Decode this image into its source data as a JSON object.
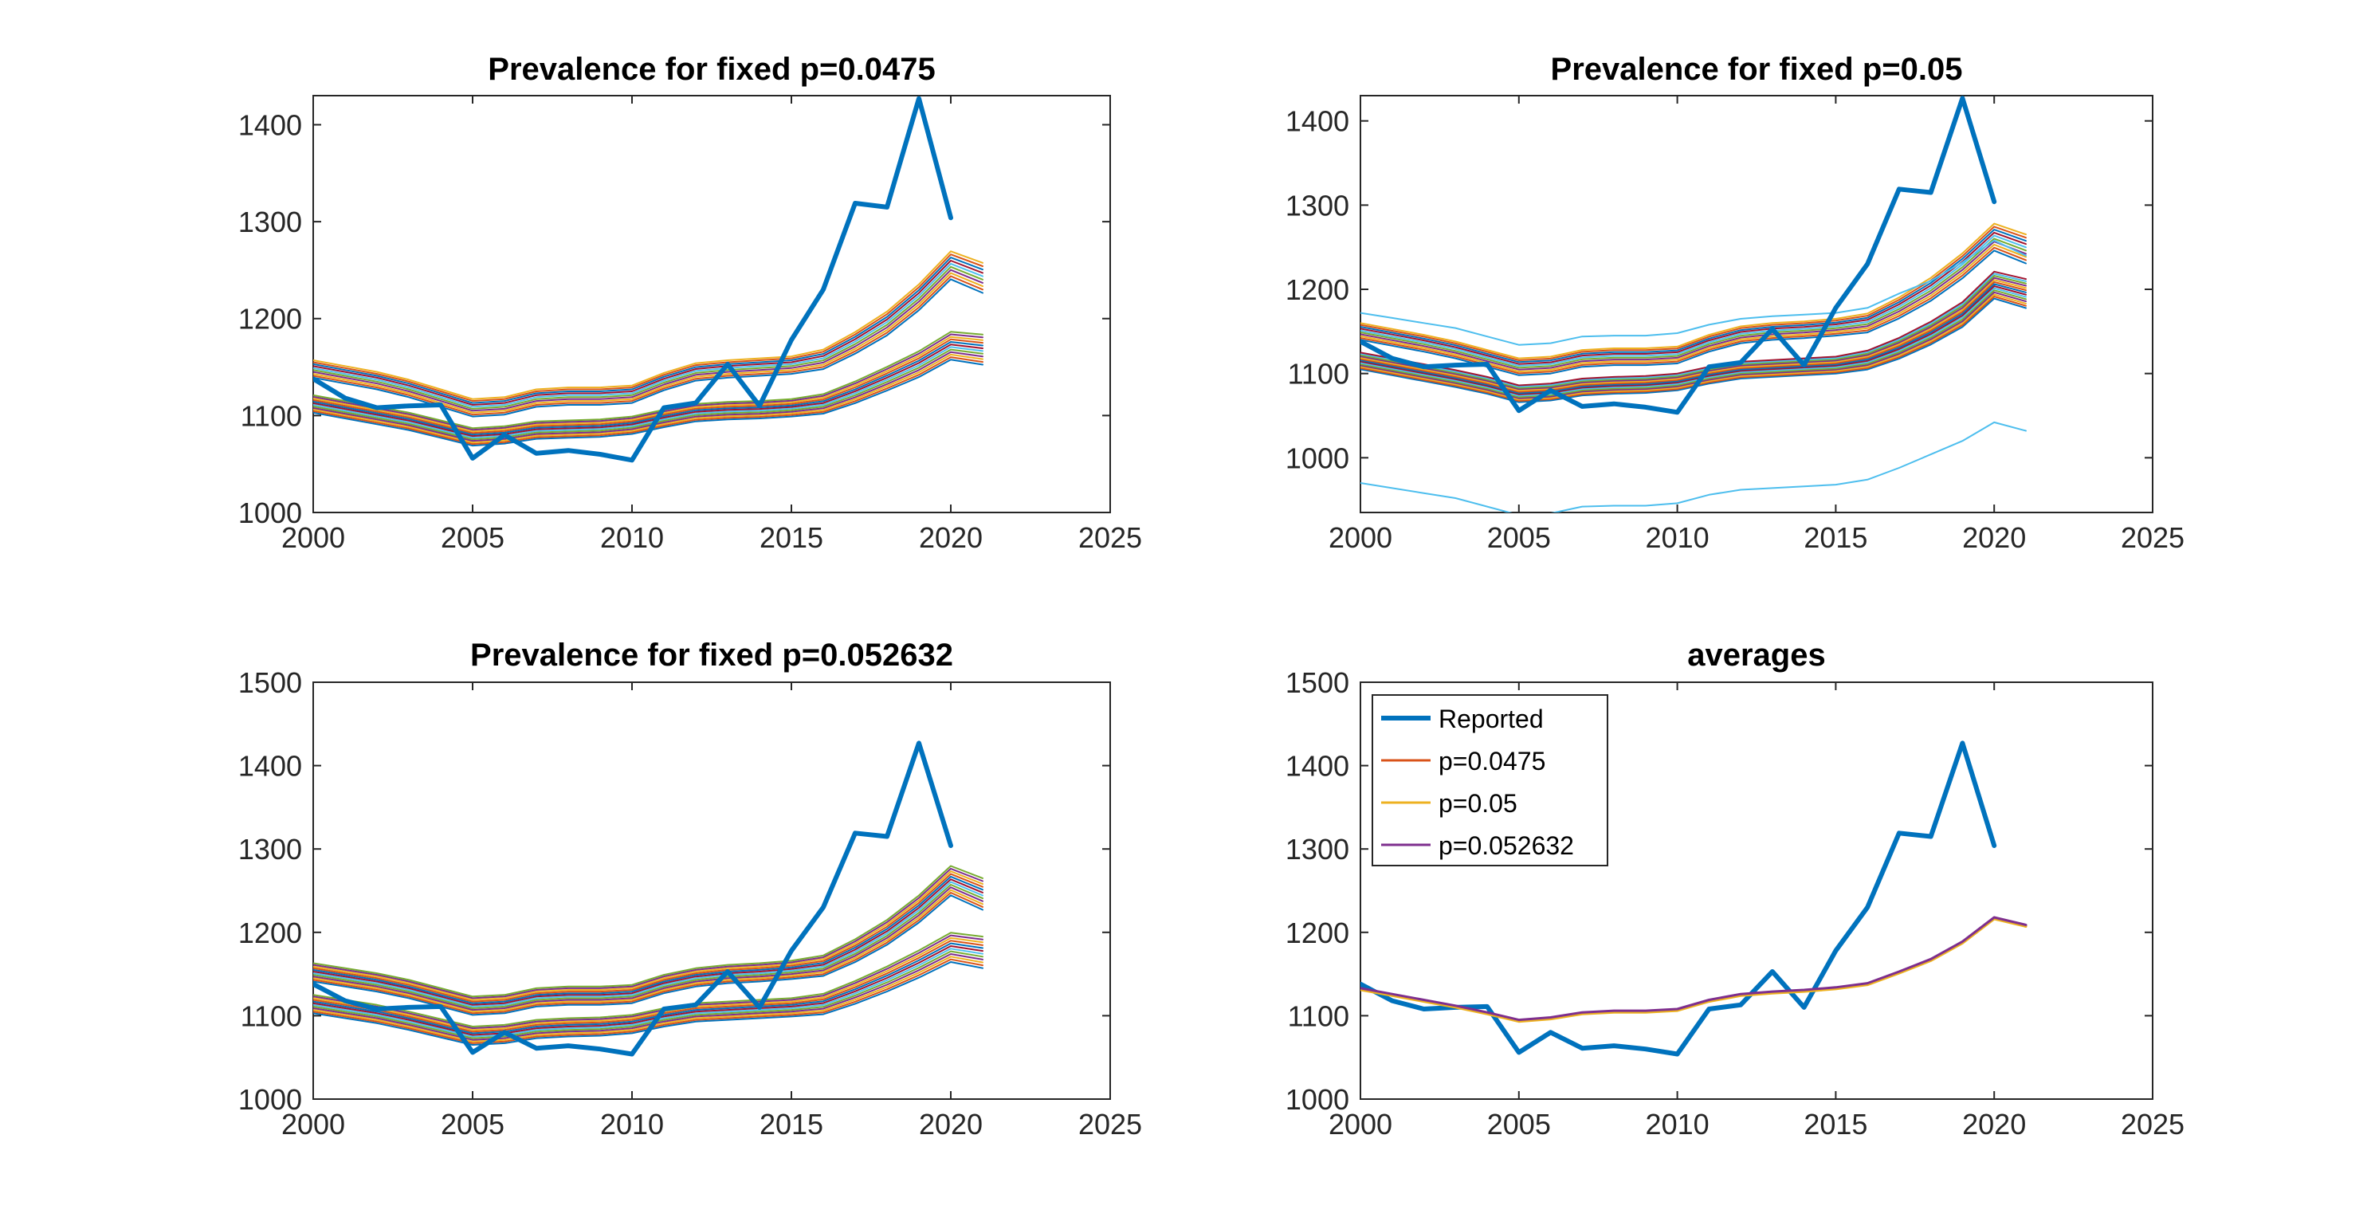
{
  "chart_data": [
    {
      "type": "line",
      "title": "Prevalence for fixed p=0.0475",
      "xlim": [
        2000,
        2025
      ],
      "ylim": [
        1000,
        1430
      ],
      "xticks": [
        2000,
        2005,
        2010,
        2015,
        2020,
        2025
      ],
      "yticks": [
        1000,
        1100,
        1200,
        1300,
        1400
      ],
      "grid": false,
      "reported": {
        "name": "Reported",
        "color": "#0072BD",
        "x": [
          2000,
          2001,
          2002,
          2003,
          2004,
          2005,
          2006,
          2007,
          2008,
          2009,
          2010,
          2011,
          2012,
          2013,
          2014,
          2015,
          2016,
          2017,
          2018,
          2019,
          2020
        ],
        "y": [
          1138,
          1118,
          1108,
          1110,
          1111,
          1056,
          1080,
          1061,
          1064,
          1060,
          1054,
          1108,
          1113,
          1153,
          1110,
          1178,
          1230,
          1319,
          1315,
          1427,
          1304
        ]
      },
      "simulation_x": [
        2000,
        2001,
        2002,
        2003,
        2004,
        2005,
        2006,
        2007,
        2008,
        2009,
        2010,
        2011,
        2012,
        2013,
        2014,
        2015,
        2016,
        2017,
        2018,
        2019,
        2020,
        2021
      ],
      "simulation_top_band": {
        "base": [
          1148,
          1142,
          1136,
          1128,
          1118,
          1108,
          1110,
          1118,
          1120,
          1120,
          1122,
          1135,
          1145,
          1148,
          1150,
          1152,
          1158,
          1175,
          1195,
          1222,
          1255,
          1242
        ],
        "count": 10,
        "spread": 18
      },
      "simulation_bottom_band": {
        "base": [
          1112,
          1106,
          1100,
          1094,
          1086,
          1078,
          1080,
          1085,
          1086,
          1087,
          1090,
          1097,
          1103,
          1105,
          1106,
          1108,
          1112,
          1124,
          1138,
          1153,
          1172,
          1168
        ],
        "count": 12,
        "spread": 18
      }
    },
    {
      "type": "line",
      "title": "Prevalence for fixed p=0.05",
      "xlim": [
        2000,
        2025
      ],
      "ylim": [
        935,
        1430
      ],
      "xticks": [
        2000,
        2005,
        2010,
        2015,
        2020,
        2025
      ],
      "yticks": [
        1000,
        1100,
        1200,
        1300,
        1400
      ],
      "grid": false,
      "reported": {
        "name": "Reported",
        "color": "#0072BD",
        "x": [
          2000,
          2001,
          2002,
          2003,
          2004,
          2005,
          2006,
          2007,
          2008,
          2009,
          2010,
          2011,
          2012,
          2013,
          2014,
          2015,
          2016,
          2017,
          2018,
          2019,
          2020
        ],
        "y": [
          1138,
          1118,
          1108,
          1110,
          1111,
          1056,
          1080,
          1061,
          1064,
          1060,
          1054,
          1108,
          1113,
          1153,
          1110,
          1178,
          1230,
          1319,
          1315,
          1427,
          1304
        ]
      },
      "simulation_x": [
        2000,
        2001,
        2002,
        2003,
        2004,
        2005,
        2006,
        2007,
        2008,
        2009,
        2010,
        2011,
        2012,
        2013,
        2014,
        2015,
        2016,
        2017,
        2018,
        2019,
        2020,
        2021
      ],
      "simulation_top_band": {
        "base": [
          1150,
          1143,
          1136,
          1128,
          1118,
          1108,
          1110,
          1118,
          1120,
          1120,
          1122,
          1136,
          1146,
          1150,
          1152,
          1155,
          1160,
          1178,
          1200,
          1228,
          1262,
          1248
        ],
        "count": 10,
        "spread": 20
      },
      "simulation_bottom_band": {
        "base": [
          1115,
          1108,
          1101,
          1094,
          1086,
          1076,
          1078,
          1084,
          1086,
          1087,
          1090,
          1098,
          1104,
          1106,
          1108,
          1110,
          1116,
          1130,
          1148,
          1170,
          1205,
          1195
        ],
        "count": 14,
        "spread": 20
      },
      "outliers": [
        {
          "color": "#4DBEEE",
          "y": [
            1172,
            1166,
            1160,
            1154,
            1144,
            1134,
            1136,
            1144,
            1145,
            1145,
            1148,
            1158,
            1165,
            1168,
            1170,
            1172,
            1178,
            1195,
            1210,
            1232,
            1258,
            1240
          ]
        },
        {
          "color": "#4DBEEE",
          "y": [
            970,
            964,
            958,
            952,
            942,
            932,
            934,
            942,
            943,
            943,
            946,
            956,
            962,
            964,
            966,
            968,
            974,
            988,
            1004,
            1020,
            1042,
            1032
          ]
        }
      ]
    },
    {
      "type": "line",
      "title": "Prevalence for fixed p=0.052632",
      "xlim": [
        2000,
        2025
      ],
      "ylim": [
        1000,
        1500
      ],
      "xticks": [
        2000,
        2005,
        2010,
        2015,
        2020,
        2025
      ],
      "yticks": [
        1000,
        1100,
        1200,
        1300,
        1400,
        1500
      ],
      "grid": false,
      "reported": {
        "name": "Reported",
        "color": "#0072BD",
        "x": [
          2000,
          2001,
          2002,
          2003,
          2004,
          2005,
          2006,
          2007,
          2008,
          2009,
          2010,
          2011,
          2012,
          2013,
          2014,
          2015,
          2016,
          2017,
          2018,
          2019,
          2020
        ],
        "y": [
          1138,
          1118,
          1108,
          1110,
          1111,
          1056,
          1080,
          1061,
          1064,
          1060,
          1054,
          1108,
          1113,
          1153,
          1110,
          1178,
          1230,
          1319,
          1315,
          1427,
          1304
        ]
      },
      "simulation_x": [
        2000,
        2001,
        2002,
        2003,
        2004,
        2005,
        2006,
        2007,
        2008,
        2009,
        2010,
        2011,
        2012,
        2013,
        2014,
        2015,
        2016,
        2017,
        2018,
        2019,
        2020,
        2021
      ],
      "simulation_top_band": {
        "base": [
          1152,
          1146,
          1140,
          1132,
          1122,
          1112,
          1114,
          1122,
          1124,
          1124,
          1126,
          1138,
          1146,
          1150,
          1152,
          1155,
          1160,
          1178,
          1200,
          1228,
          1262,
          1246
        ],
        "count": 12,
        "spread": 22
      },
      "simulation_bottom_band": {
        "base": [
          1114,
          1108,
          1102,
          1094,
          1085,
          1076,
          1078,
          1084,
          1086,
          1087,
          1090,
          1098,
          1104,
          1106,
          1108,
          1110,
          1114,
          1128,
          1144,
          1162,
          1182,
          1176
        ],
        "count": 12,
        "spread": 22
      }
    },
    {
      "type": "line",
      "title": "averages",
      "xlim": [
        2000,
        2025
      ],
      "ylim": [
        1000,
        1500
      ],
      "xticks": [
        2000,
        2005,
        2010,
        2015,
        2020,
        2025
      ],
      "yticks": [
        1000,
        1100,
        1200,
        1300,
        1400,
        1500
      ],
      "grid": false,
      "legend_position": "top-left",
      "series": [
        {
          "name": "Reported",
          "color": "#0072BD",
          "x": [
            2000,
            2001,
            2002,
            2003,
            2004,
            2005,
            2006,
            2007,
            2008,
            2009,
            2010,
            2011,
            2012,
            2013,
            2014,
            2015,
            2016,
            2017,
            2018,
            2019,
            2020
          ],
          "y": [
            1138,
            1118,
            1108,
            1110,
            1111,
            1056,
            1080,
            1061,
            1064,
            1060,
            1054,
            1108,
            1113,
            1153,
            1110,
            1178,
            1230,
            1319,
            1315,
            1427,
            1304
          ]
        },
        {
          "name": "p=0.0475",
          "color": "#D95319",
          "x": [
            2000,
            2001,
            2002,
            2003,
            2004,
            2005,
            2006,
            2007,
            2008,
            2009,
            2010,
            2011,
            2012,
            2013,
            2014,
            2015,
            2016,
            2017,
            2018,
            2019,
            2020,
            2021
          ],
          "y": [
            1132,
            1125,
            1118,
            1111,
            1103,
            1094,
            1097,
            1103,
            1105,
            1105,
            1107,
            1118,
            1125,
            1128,
            1130,
            1133,
            1138,
            1152,
            1167,
            1188,
            1217,
            1208
          ]
        },
        {
          "name": "p=0.05",
          "color": "#EDB120",
          "x": [
            2000,
            2001,
            2002,
            2003,
            2004,
            2005,
            2006,
            2007,
            2008,
            2009,
            2010,
            2011,
            2012,
            2013,
            2014,
            2015,
            2016,
            2017,
            2018,
            2019,
            2020,
            2021
          ],
          "y": [
            1131,
            1124,
            1117,
            1110,
            1102,
            1093,
            1096,
            1102,
            1104,
            1104,
            1106,
            1117,
            1124,
            1127,
            1129,
            1132,
            1137,
            1151,
            1166,
            1187,
            1216,
            1207
          ]
        },
        {
          "name": "p=0.052632",
          "color": "#7E2F8E",
          "x": [
            2000,
            2001,
            2002,
            2003,
            2004,
            2005,
            2006,
            2007,
            2008,
            2009,
            2010,
            2011,
            2012,
            2013,
            2014,
            2015,
            2016,
            2017,
            2018,
            2019,
            2020,
            2021
          ],
          "y": [
            1133,
            1126,
            1119,
            1112,
            1104,
            1095,
            1098,
            1104,
            1106,
            1106,
            1108,
            1119,
            1126,
            1129,
            1131,
            1134,
            1139,
            1153,
            1168,
            1189,
            1218,
            1209
          ]
        }
      ]
    }
  ],
  "simulation_palette": [
    "#0072BD",
    "#D95319",
    "#EDB120",
    "#7E2F8E",
    "#77AC30",
    "#4DBEEE",
    "#A2142F"
  ]
}
